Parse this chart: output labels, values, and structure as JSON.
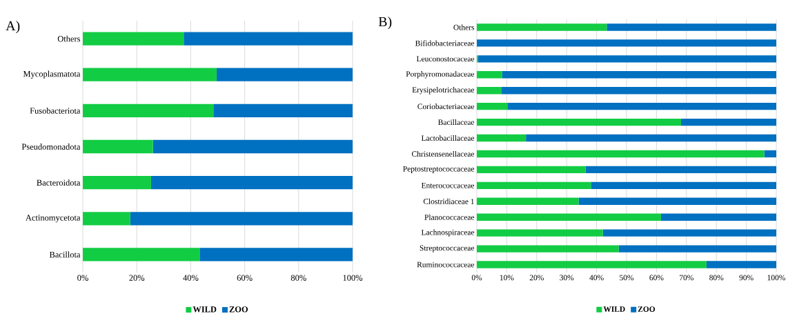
{
  "chart_data": [
    {
      "type": "bar",
      "title": "A)",
      "orientation": "horizontal",
      "stacked": true,
      "grid": "x",
      "legend": "bottom",
      "categories": [
        "Others",
        "Mycoplasmatota",
        "Fusobacteriota",
        "Pseudomonadota",
        "Bacteroidota",
        "Actinomycetota",
        "Bacillota"
      ],
      "series": [
        {
          "name": "WILD",
          "color": "#12cc44",
          "values": [
            37.4,
            49.6,
            48.4,
            26.0,
            25.3,
            17.6,
            43.3
          ]
        },
        {
          "name": "ZOO",
          "color": "#0070c0",
          "values": [
            62.6,
            50.4,
            51.6,
            74.0,
            74.7,
            82.4,
            56.7
          ]
        }
      ],
      "xlim": [
        0,
        100
      ],
      "xticks": [
        {
          "value": 0,
          "label": "0%"
        },
        {
          "value": 20,
          "label": "20%"
        },
        {
          "value": 40,
          "label": "40%"
        },
        {
          "value": 60,
          "label": "60%"
        },
        {
          "value": 80,
          "label": "80%"
        },
        {
          "value": 100,
          "label": "100%"
        }
      ]
    },
    {
      "type": "bar",
      "title": "B)",
      "orientation": "horizontal",
      "stacked": true,
      "grid": "x",
      "legend": "bottom",
      "categories": [
        "Others",
        "Bifidobacteriaceae",
        "Leuconostocaceae",
        "Porphyromonadaceae",
        "Erysipelotrichaceae",
        "Coriobacteriaceae",
        "Bacillaceae",
        "Lactobacillaceae",
        "Christensenellaceae",
        "Peptostreptococcaceae",
        "Enterococcaceae",
        "Clostridiaceae 1",
        "Planococcaceae",
        "Lachnospiraceae",
        "Streptococcaceae",
        "Ruminococcaceae"
      ],
      "series": [
        {
          "name": "WILD",
          "color": "#12cc44",
          "values": [
            43.4,
            0,
            0.4,
            8.5,
            8.3,
            10.2,
            68.2,
            16.4,
            96.0,
            36.3,
            38.1,
            34.0,
            61.5,
            42.1,
            47.4,
            76.7
          ]
        },
        {
          "name": "ZOO",
          "color": "#0070c0",
          "values": [
            56.6,
            100,
            99.6,
            91.5,
            91.7,
            89.8,
            31.8,
            83.6,
            4.0,
            63.7,
            61.9,
            66.0,
            38.5,
            57.9,
            52.6,
            23.3
          ]
        }
      ],
      "xlim": [
        0,
        100
      ],
      "xticks": [
        {
          "value": 0,
          "label": "0%"
        },
        {
          "value": 10,
          "label": "10%"
        },
        {
          "value": 20,
          "label": "20%"
        },
        {
          "value": 30,
          "label": "30%"
        },
        {
          "value": 40,
          "label": "40%"
        },
        {
          "value": 50,
          "label": "50%"
        },
        {
          "value": 60,
          "label": "60%"
        },
        {
          "value": 70,
          "label": "70%"
        },
        {
          "value": 80,
          "label": "80%"
        },
        {
          "value": 90,
          "label": "90%"
        },
        {
          "value": 100,
          "label": "100%"
        }
      ]
    }
  ]
}
